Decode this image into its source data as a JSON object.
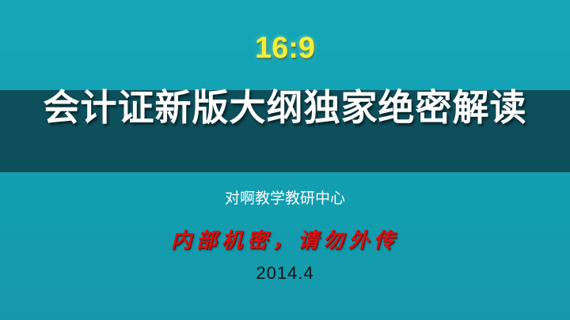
{
  "slide": {
    "ratio_label": "16:9",
    "title": "会计证新版大纲独家绝密解读",
    "subtitle": "对啊教学教研中心",
    "confidential_note": "内部机密，请勿外传",
    "date": "2014.4"
  },
  "colors": {
    "background": "#13a3b5",
    "title_band": "#0e4f5c",
    "ratio_label": "#f4ee3a",
    "title_text": "#ffffff",
    "confidential_text": "#d21414",
    "date_text": "#111111"
  }
}
